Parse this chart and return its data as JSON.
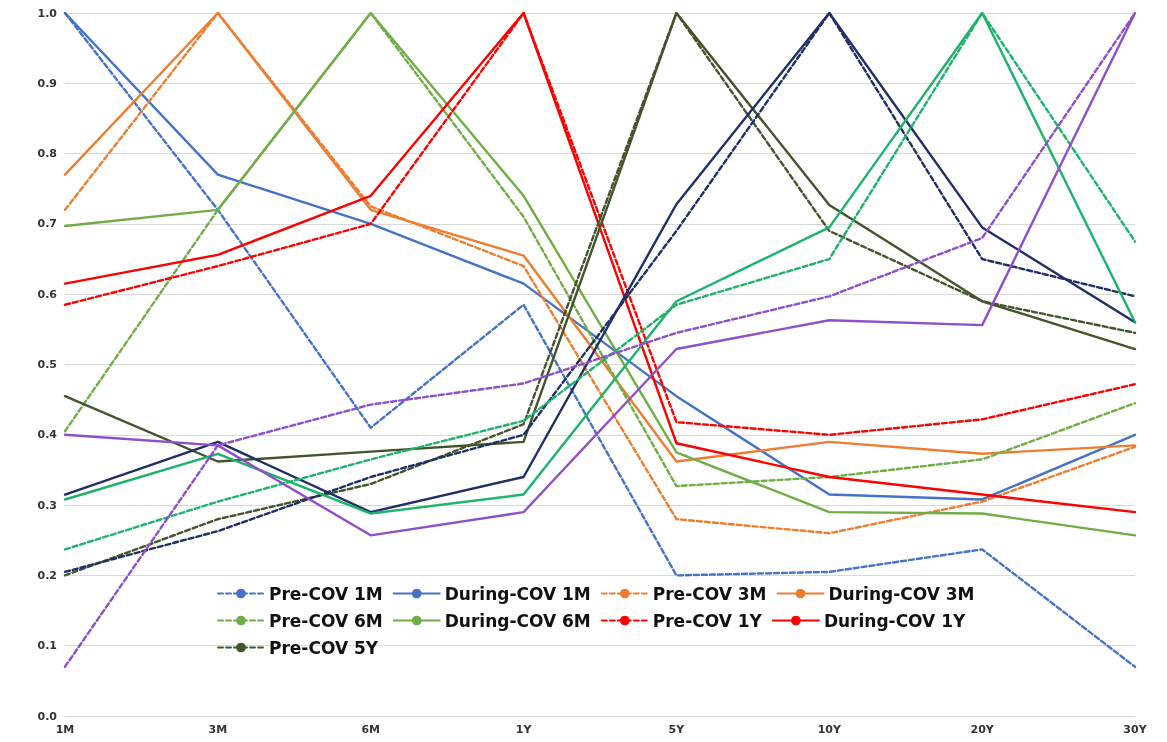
{
  "chart_data": {
    "type": "line",
    "categories": [
      "1M",
      "3M",
      "6M",
      "1Y",
      "5Y",
      "10Y",
      "20Y",
      "30Y"
    ],
    "ylim": [
      0,
      1
    ],
    "yticks": [
      {
        "value": 0,
        "label": "0.0"
      },
      0.1,
      0.2,
      0.3,
      0.4,
      0.5,
      0.6,
      0.7,
      0.8,
      0.9,
      {
        "value": 1,
        "label": "1.0"
      }
    ],
    "grid": "y",
    "legend": "bottom",
    "marker": "none",
    "series": [
      {
        "name": "Pre-COV 1M",
        "color": "#4472c4",
        "line_style": "dashed",
        "values": [
          1.0,
          0.72,
          0.41,
          0.585,
          0.2,
          0.205,
          0.237,
          0.07
        ]
      },
      {
        "name": "During-COV 1M",
        "color": "#4472c4",
        "line_style": "solid",
        "values": [
          1.0,
          0.77,
          0.7,
          0.615,
          0.455,
          0.315,
          0.308,
          0.4
        ]
      },
      {
        "name": "Pre-COV 3M",
        "color": "#ed7d31",
        "line_style": "dashed",
        "values": [
          0.72,
          1.0,
          0.725,
          0.64,
          0.28,
          0.26,
          0.305,
          0.383
        ]
      },
      {
        "name": "During-COV 3M",
        "color": "#ed7d31",
        "line_style": "solid",
        "values": [
          0.77,
          1.0,
          0.72,
          0.655,
          0.362,
          0.39,
          0.373,
          0.385
        ]
      },
      {
        "name": "Pre-COV 6M",
        "color": "#70ad47",
        "line_style": "dashed",
        "values": [
          0.405,
          0.72,
          1.0,
          0.71,
          0.327,
          0.34,
          0.365,
          0.445
        ]
      },
      {
        "name": "During-COV 6M",
        "color": "#70ad47",
        "line_style": "solid",
        "values": [
          0.697,
          0.72,
          1.0,
          0.74,
          0.375,
          0.29,
          0.288,
          0.257
        ]
      },
      {
        "name": "Pre-COV 1Y",
        "color": "#ff0000",
        "line_style": "dashed",
        "values": [
          0.585,
          0.64,
          0.7,
          1.0,
          0.418,
          0.4,
          0.422,
          0.472
        ]
      },
      {
        "name": "During-COV 1Y",
        "color": "#ff0000",
        "line_style": "solid",
        "values": [
          0.615,
          0.656,
          0.74,
          1.0,
          0.388,
          0.34,
          0.315,
          0.29
        ]
      },
      {
        "name": "Pre-COV 5Y",
        "color": "#43542c",
        "line_style": "dashed",
        "values": [
          0.2,
          0.28,
          0.33,
          0.415,
          1.0,
          0.69,
          0.59,
          0.545
        ]
      },
      {
        "color": "#43542c",
        "line_style": "solid",
        "values": [
          0.455,
          0.362,
          0.376,
          0.39,
          1.0,
          0.727,
          0.59,
          0.522
        ]
      },
      {
        "color": "#1f2f66",
        "line_style": "dashed",
        "values": [
          0.205,
          0.263,
          0.34,
          0.4,
          0.69,
          1.0,
          0.65,
          0.597
        ]
      },
      {
        "color": "#1f2f66",
        "line_style": "solid",
        "values": [
          0.315,
          0.39,
          0.29,
          0.34,
          0.728,
          1.0,
          0.695,
          0.56
        ]
      },
      {
        "color": "#1db36b",
        "line_style": "dashed",
        "values": [
          0.237,
          0.305,
          0.365,
          0.42,
          0.585,
          0.65,
          1.0,
          0.675
        ]
      },
      {
        "color": "#1db36b",
        "line_style": "solid",
        "values": [
          0.308,
          0.373,
          0.288,
          0.315,
          0.59,
          0.695,
          1.0,
          0.56
        ]
      },
      {
        "color": "#8e4fc9",
        "line_style": "dashed",
        "values": [
          0.07,
          0.385,
          0.443,
          0.473,
          0.545,
          0.597,
          0.68,
          1.0
        ]
      },
      {
        "color": "#8e4fc9",
        "line_style": "solid",
        "values": [
          0.4,
          0.385,
          0.257,
          0.29,
          0.522,
          0.563,
          0.556,
          1.0
        ]
      }
    ]
  }
}
